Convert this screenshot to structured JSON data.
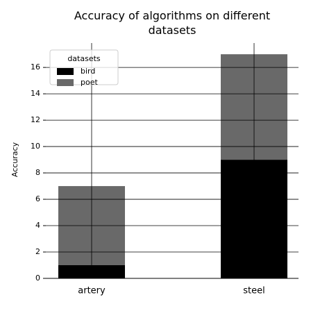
{
  "chart_data": {
    "type": "stacked_bar",
    "title": "Accuracy of algorithms on different datasets",
    "y_label": "Accuracy",
    "categories": [
      "artery",
      "steel"
    ],
    "series": [
      {
        "name": "bird",
        "color": "#000000",
        "values": [
          1,
          9
        ]
      },
      {
        "name": "poet",
        "color": "#696969",
        "values": [
          6,
          8
        ]
      }
    ],
    "ylim": [
      0,
      17.85
    ],
    "yticks": [
      0,
      2,
      4,
      6,
      8,
      10,
      12,
      14,
      16
    ],
    "grid": true,
    "legend_title": "datasets",
    "legend_position": "upper left"
  }
}
